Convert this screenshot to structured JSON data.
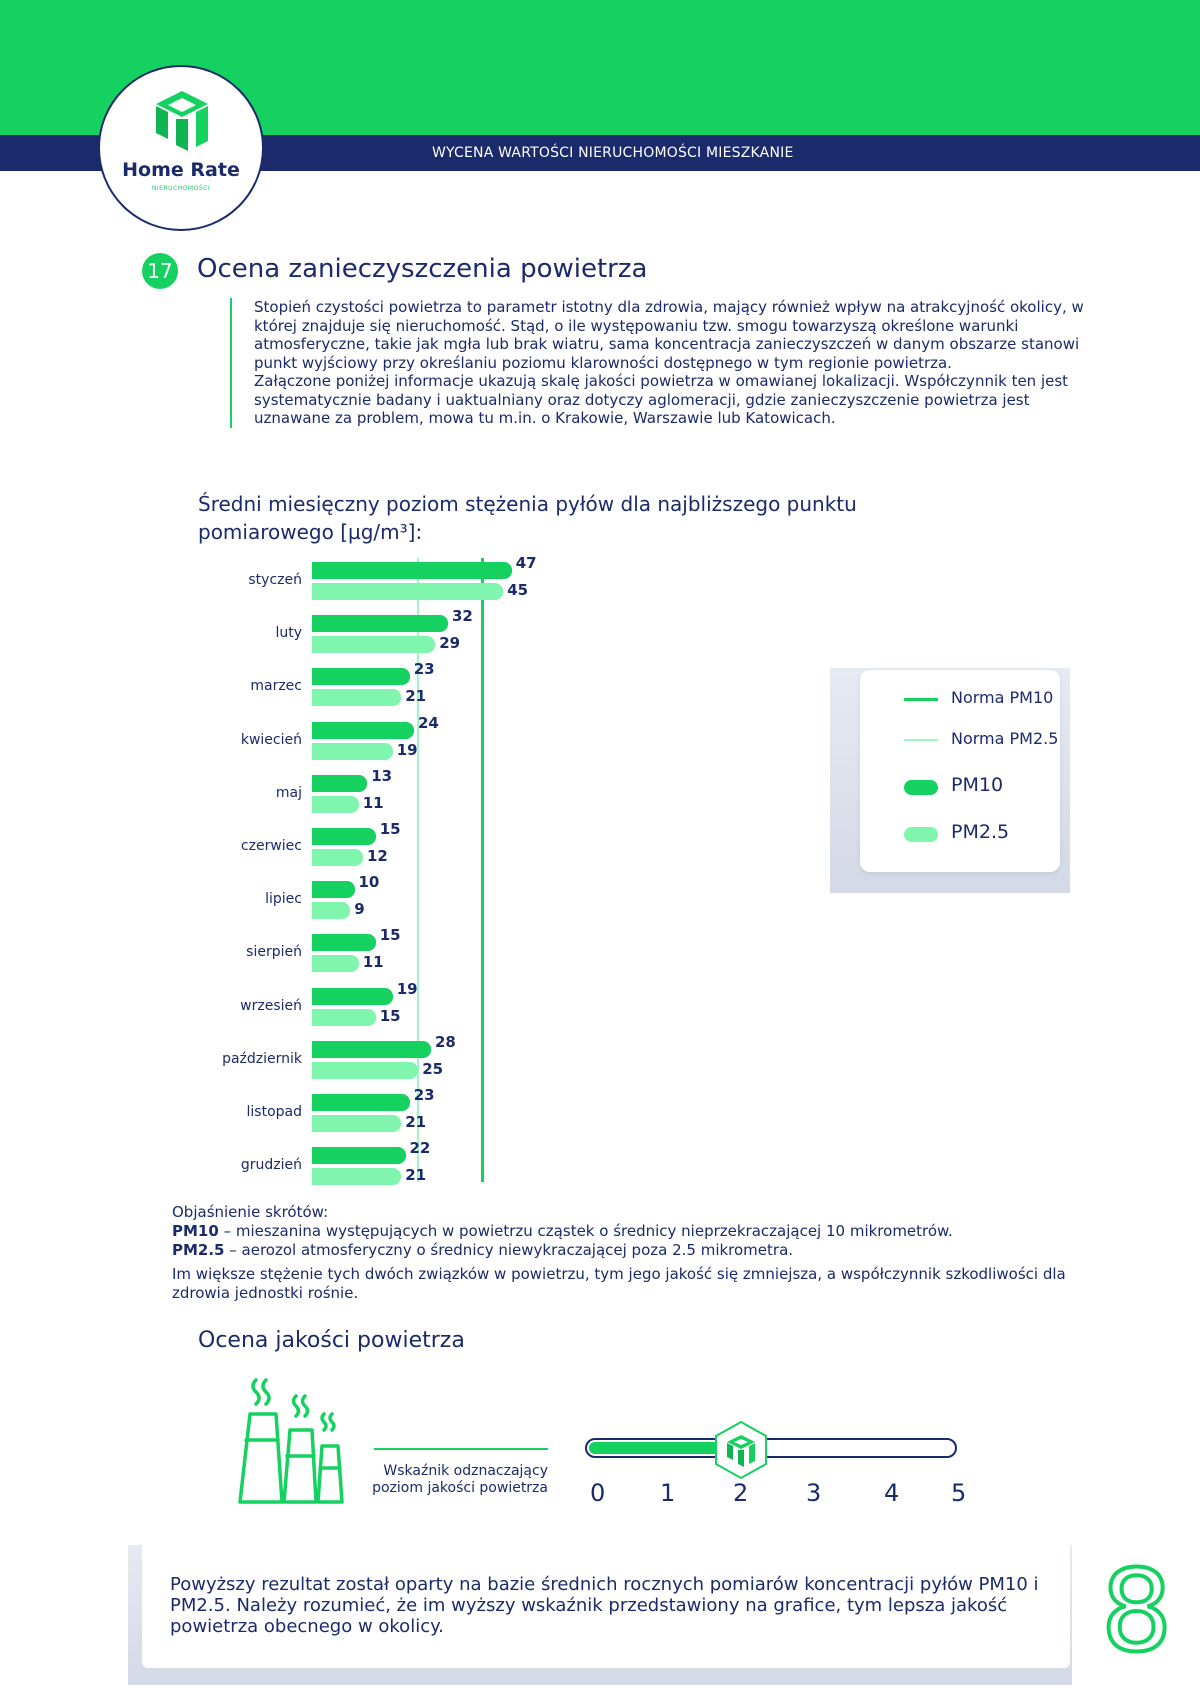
{
  "header": {
    "title": "WYCENA WARTOŚCI NIERUCHOMOŚCI MIESZKANIE"
  },
  "logo": {
    "name": "Home Rate",
    "sub": "NIERUCHOMOŚCI",
    "icon": "house-logo-icon"
  },
  "section": {
    "number": "17",
    "title": "Ocena zanieczyszczenia powietrza",
    "paragraphs": [
      "Stopień czystości powietrza to parametr istotny dla zdrowia, mający również wpływ na atrakcyjność okolicy, w której znajduje się nieruchomość. Stąd, o ile występowaniu tzw. smogu towarzyszą określone warunki atmosferyczne, takie jak mgła lub brak wiatru, sama koncentracja zanieczyszczeń w danym obszarze stanowi punkt wyjściowy przy określaniu poziomu klarowności dostępnego w tym regionie powietrza.",
      "Załączone poniżej informacje ukazują skalę jakości powietrza w omawianej lokalizacji. Współczynnik ten jest systematycznie badany i uaktualniany oraz dotyczy aglomeracji, gdzie zanieczyszczenie powietrza jest uznawane za problem, mowa tu m.in. o Krakowie, Warszawie lub Katowicach."
    ]
  },
  "chart_data": {
    "type": "bar",
    "orientation": "horizontal",
    "title": "Średni miesięczny poziom stężenia pyłów dla najbliższego punktu pomiarowego [µg/m³]:",
    "categories": [
      "styczeń",
      "luty",
      "marzec",
      "kwiecień",
      "maj",
      "czerwiec",
      "lipiec",
      "sierpień",
      "wrzesień",
      "październik",
      "listopad",
      "grudzień"
    ],
    "series": [
      {
        "name": "PM10",
        "values": [
          47,
          32,
          23,
          24,
          13,
          15,
          10,
          15,
          19,
          28,
          23,
          22
        ],
        "color": "#14d160"
      },
      {
        "name": "PM2.5",
        "values": [
          45,
          29,
          21,
          19,
          11,
          12,
          9,
          11,
          15,
          25,
          21,
          21
        ],
        "color": "#7ff5ad"
      }
    ],
    "norms": [
      {
        "name": "Norma PM10",
        "value": 40,
        "color": "#14d160"
      },
      {
        "name": "Norma PM2.5",
        "value": 25,
        "color": "#9ef8c3"
      }
    ],
    "legend": [
      "Norma PM10",
      "Norma PM2.5",
      "PM10",
      "PM2.5"
    ],
    "legend_position": "right",
    "xlim": [
      0,
      50
    ],
    "grid": false
  },
  "explanation": {
    "heading": "Objaśnienie skrótów:",
    "pm10_term": "PM10",
    "pm10_def": " – mieszanina występujących w powietrzu cząstek o średnicy nieprzekraczającej 10 mikrometrów.",
    "pm25_term": "PM2.5",
    "pm25_def": " – aerozol atmosferyczny o średnicy niewykraczającej poza 2.5 mikrometra.",
    "note": "Im większe stężenie tych dwóch związków w powietrzu, tym jego jakość się zmniejsza, a współczynnik szkodliwości dla zdrowia jednostki rośnie."
  },
  "air_quality": {
    "title": "Ocena jakości powietrza",
    "indicator_label": "Wskaźnik odznaczający poziom jakości powietrza",
    "scale": [
      "0",
      "1",
      "2",
      "3",
      "4",
      "5"
    ],
    "level": 2,
    "icon": "factory-smoke-icon"
  },
  "footer": {
    "text": "Powyższy rezultat został oparty na bazie średnich rocznych pomiarów koncentracji pyłów PM10 i PM2.5. Należy rozumieć, że im wyższy wskaźnik przedstawiony na grafice, tym lepsza jakość powietrza obecnego w okolicy."
  },
  "page_number": "8"
}
